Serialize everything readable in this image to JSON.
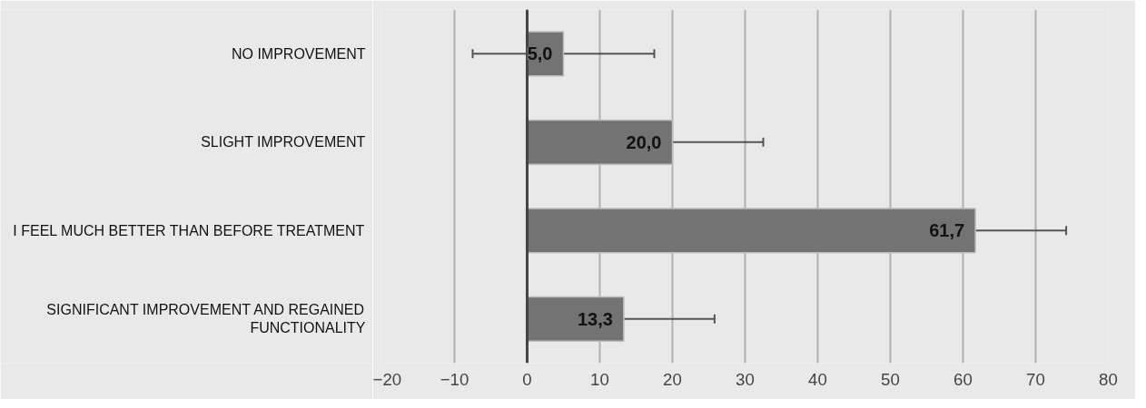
{
  "chart_data": {
    "type": "bar",
    "orientation": "horizontal",
    "categories": [
      "NO IMPROVEMENT",
      "SLIGHT IMPROVEMENT",
      "I FEEL MUCH BETTER THAN BEFORE TREATMENT",
      "SIGNIFICANT IMPROVEMENT AND REGAINED FUNCTIONALITY"
    ],
    "values": [
      5.0,
      20.0,
      61.7,
      13.3
    ],
    "errors": [
      12.5,
      12.5,
      12.5,
      12.5
    ],
    "value_labels": [
      "5,0",
      "20,0",
      "61,7",
      "13,3"
    ],
    "color": "#737373",
    "xlim": [
      -20,
      80
    ],
    "xticks": [
      -20,
      -10,
      0,
      10,
      20,
      30,
      40,
      50,
      60,
      70,
      80
    ],
    "grid": "x"
  }
}
